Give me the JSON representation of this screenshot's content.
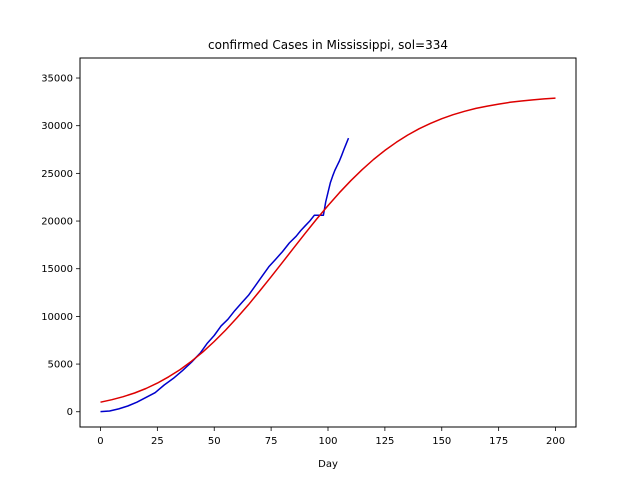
{
  "chart_data": {
    "type": "line",
    "title": "confirmed Cases in Mississippi, sol=334",
    "xlabel": "Day",
    "ylabel": "",
    "xlim": [
      -9,
      209
    ],
    "ylim": [
      -1600,
      37100
    ],
    "xticks": [
      0,
      25,
      50,
      75,
      100,
      125,
      150,
      175,
      200
    ],
    "yticks": [
      0,
      5000,
      10000,
      15000,
      20000,
      25000,
      30000,
      35000
    ],
    "grid": false,
    "series": [
      {
        "color": "#0000cc",
        "x": [
          0,
          4,
          8,
          12,
          16,
          20,
          24,
          28,
          32,
          36,
          40,
          44,
          47,
          50,
          53,
          56,
          59,
          62,
          65,
          68,
          71,
          74,
          77,
          80,
          83,
          86,
          88,
          90,
          92,
          94,
          95,
          97,
          98,
          99,
          100,
          101,
          102,
          103,
          104,
          105,
          106,
          107,
          108,
          109
        ],
        "y": [
          10,
          80,
          300,
          600,
          1000,
          1500,
          2000,
          2800,
          3500,
          4300,
          5200,
          6200,
          7200,
          8000,
          9000,
          9700,
          10600,
          11400,
          12200,
          13200,
          14200,
          15200,
          16000,
          16800,
          17700,
          18400,
          19000,
          19500,
          20000,
          20600,
          20600,
          20600,
          20600,
          22000,
          23000,
          24000,
          24700,
          25300,
          25800,
          26300,
          26900,
          27500,
          28100,
          28700
        ]
      },
      {
        "color": "#dd0000",
        "x": [
          0,
          5,
          10,
          15,
          20,
          25,
          30,
          35,
          40,
          45,
          50,
          55,
          60,
          65,
          70,
          75,
          80,
          85,
          90,
          95,
          100,
          105,
          110,
          115,
          120,
          125,
          130,
          135,
          140,
          145,
          150,
          155,
          160,
          165,
          170,
          175,
          180,
          185,
          190,
          195,
          200
        ],
        "y": [
          1000,
          1260,
          1580,
          1970,
          2440,
          3000,
          3660,
          4420,
          5300,
          6280,
          7370,
          8560,
          9850,
          11220,
          12660,
          14150,
          15670,
          17200,
          18720,
          20200,
          21620,
          22970,
          24230,
          25390,
          26450,
          27410,
          28260,
          29010,
          29670,
          30240,
          30730,
          31150,
          31510,
          31810,
          32060,
          32270,
          32450,
          32590,
          32710,
          32810,
          32890
        ]
      }
    ]
  }
}
